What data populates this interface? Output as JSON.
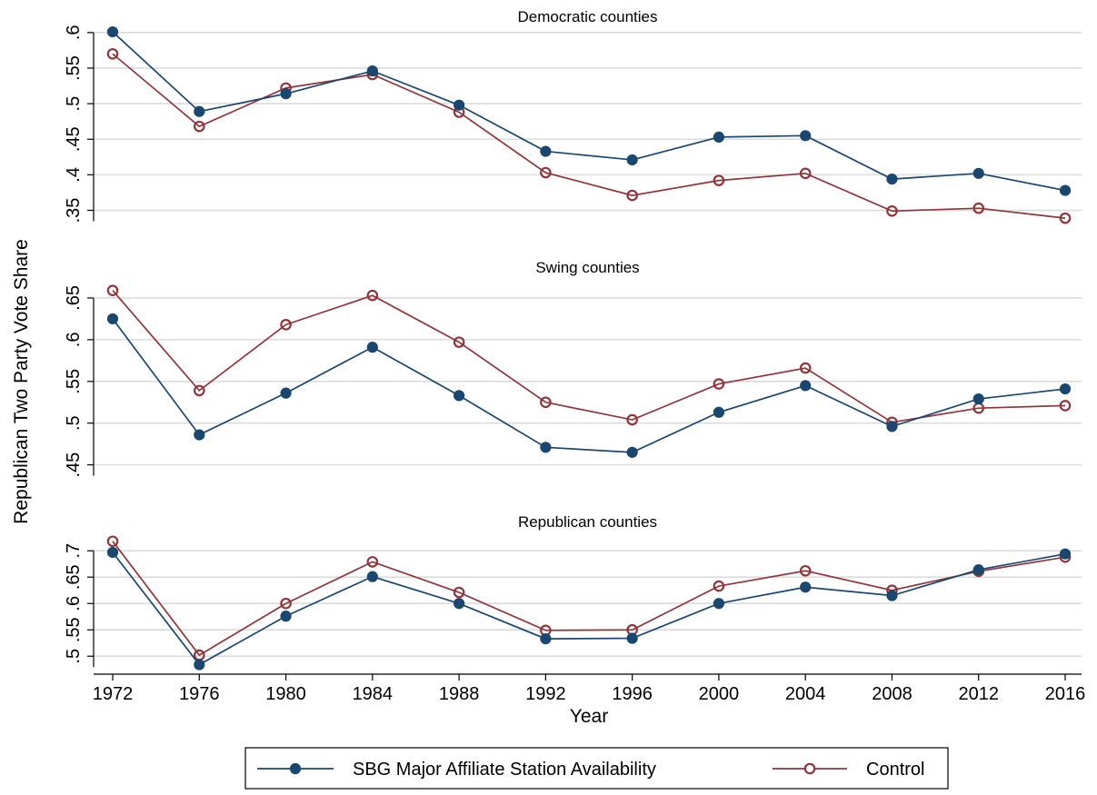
{
  "chart_data": {
    "type": "line",
    "ylabel": "Republican Two Party Vote Share",
    "xlabel": "Year",
    "x": [
      1972,
      1976,
      1980,
      1984,
      1988,
      1992,
      1996,
      2000,
      2004,
      2008,
      2012,
      2016
    ],
    "grid": true,
    "legend_position": "bottom",
    "colors": {
      "treated": "#1a476f",
      "control": "#90353b"
    },
    "legend": [
      {
        "key": "treated",
        "label": "SBG Major Affiliate Station Availability",
        "marker": "filled-circle"
      },
      {
        "key": "control",
        "label": "Control",
        "marker": "hollow-circle"
      }
    ],
    "panels": [
      {
        "title": "Democratic counties",
        "ylim": [
          0.32,
          0.61
        ],
        "yticks": [
          0.35,
          0.4,
          0.45,
          0.5,
          0.55,
          0.6
        ],
        "ytick_labels": [
          ".35",
          ".4",
          ".45",
          ".5",
          ".55",
          ".6"
        ],
        "series": [
          {
            "key": "treated",
            "values": [
              0.601,
              0.489,
              0.514,
              0.546,
              0.498,
              0.433,
              0.421,
              0.453,
              0.455,
              0.394,
              0.402,
              0.378
            ]
          },
          {
            "key": "control",
            "values": [
              0.57,
              0.468,
              0.522,
              0.541,
              0.488,
              0.403,
              0.371,
              0.392,
              0.402,
              0.349,
              0.353,
              0.339
            ]
          }
        ]
      },
      {
        "title": "Swing counties",
        "ylim": [
          0.43,
          0.675
        ],
        "yticks": [
          0.45,
          0.5,
          0.55,
          0.6,
          0.65
        ],
        "ytick_labels": [
          ".45",
          ".5",
          ".55",
          ".6",
          ".65"
        ],
        "series": [
          {
            "key": "treated",
            "values": [
              0.625,
              0.486,
              0.536,
              0.591,
              0.533,
              0.471,
              0.465,
              0.513,
              0.545,
              0.496,
              0.529,
              0.541
            ]
          },
          {
            "key": "control",
            "values": [
              0.659,
              0.539,
              0.618,
              0.653,
              0.597,
              0.525,
              0.504,
              0.547,
              0.566,
              0.501,
              0.518,
              0.521
            ]
          }
        ]
      },
      {
        "title": "Republican counties",
        "ylim": [
          0.478,
          0.74
        ],
        "yticks": [
          0.5,
          0.55,
          0.6,
          0.65,
          0.7
        ],
        "ytick_labels": [
          ".5",
          ".55",
          ".6",
          ".65",
          ".7"
        ],
        "series": [
          {
            "key": "treated",
            "values": [
              0.697,
              0.484,
              0.576,
              0.651,
              0.6,
              0.533,
              0.534,
              0.6,
              0.631,
              0.615,
              0.664,
              0.694
            ]
          },
          {
            "key": "control",
            "values": [
              0.718,
              0.502,
              0.6,
              0.679,
              0.621,
              0.549,
              0.55,
              0.633,
              0.662,
              0.625,
              0.661,
              0.688
            ]
          }
        ]
      }
    ]
  }
}
